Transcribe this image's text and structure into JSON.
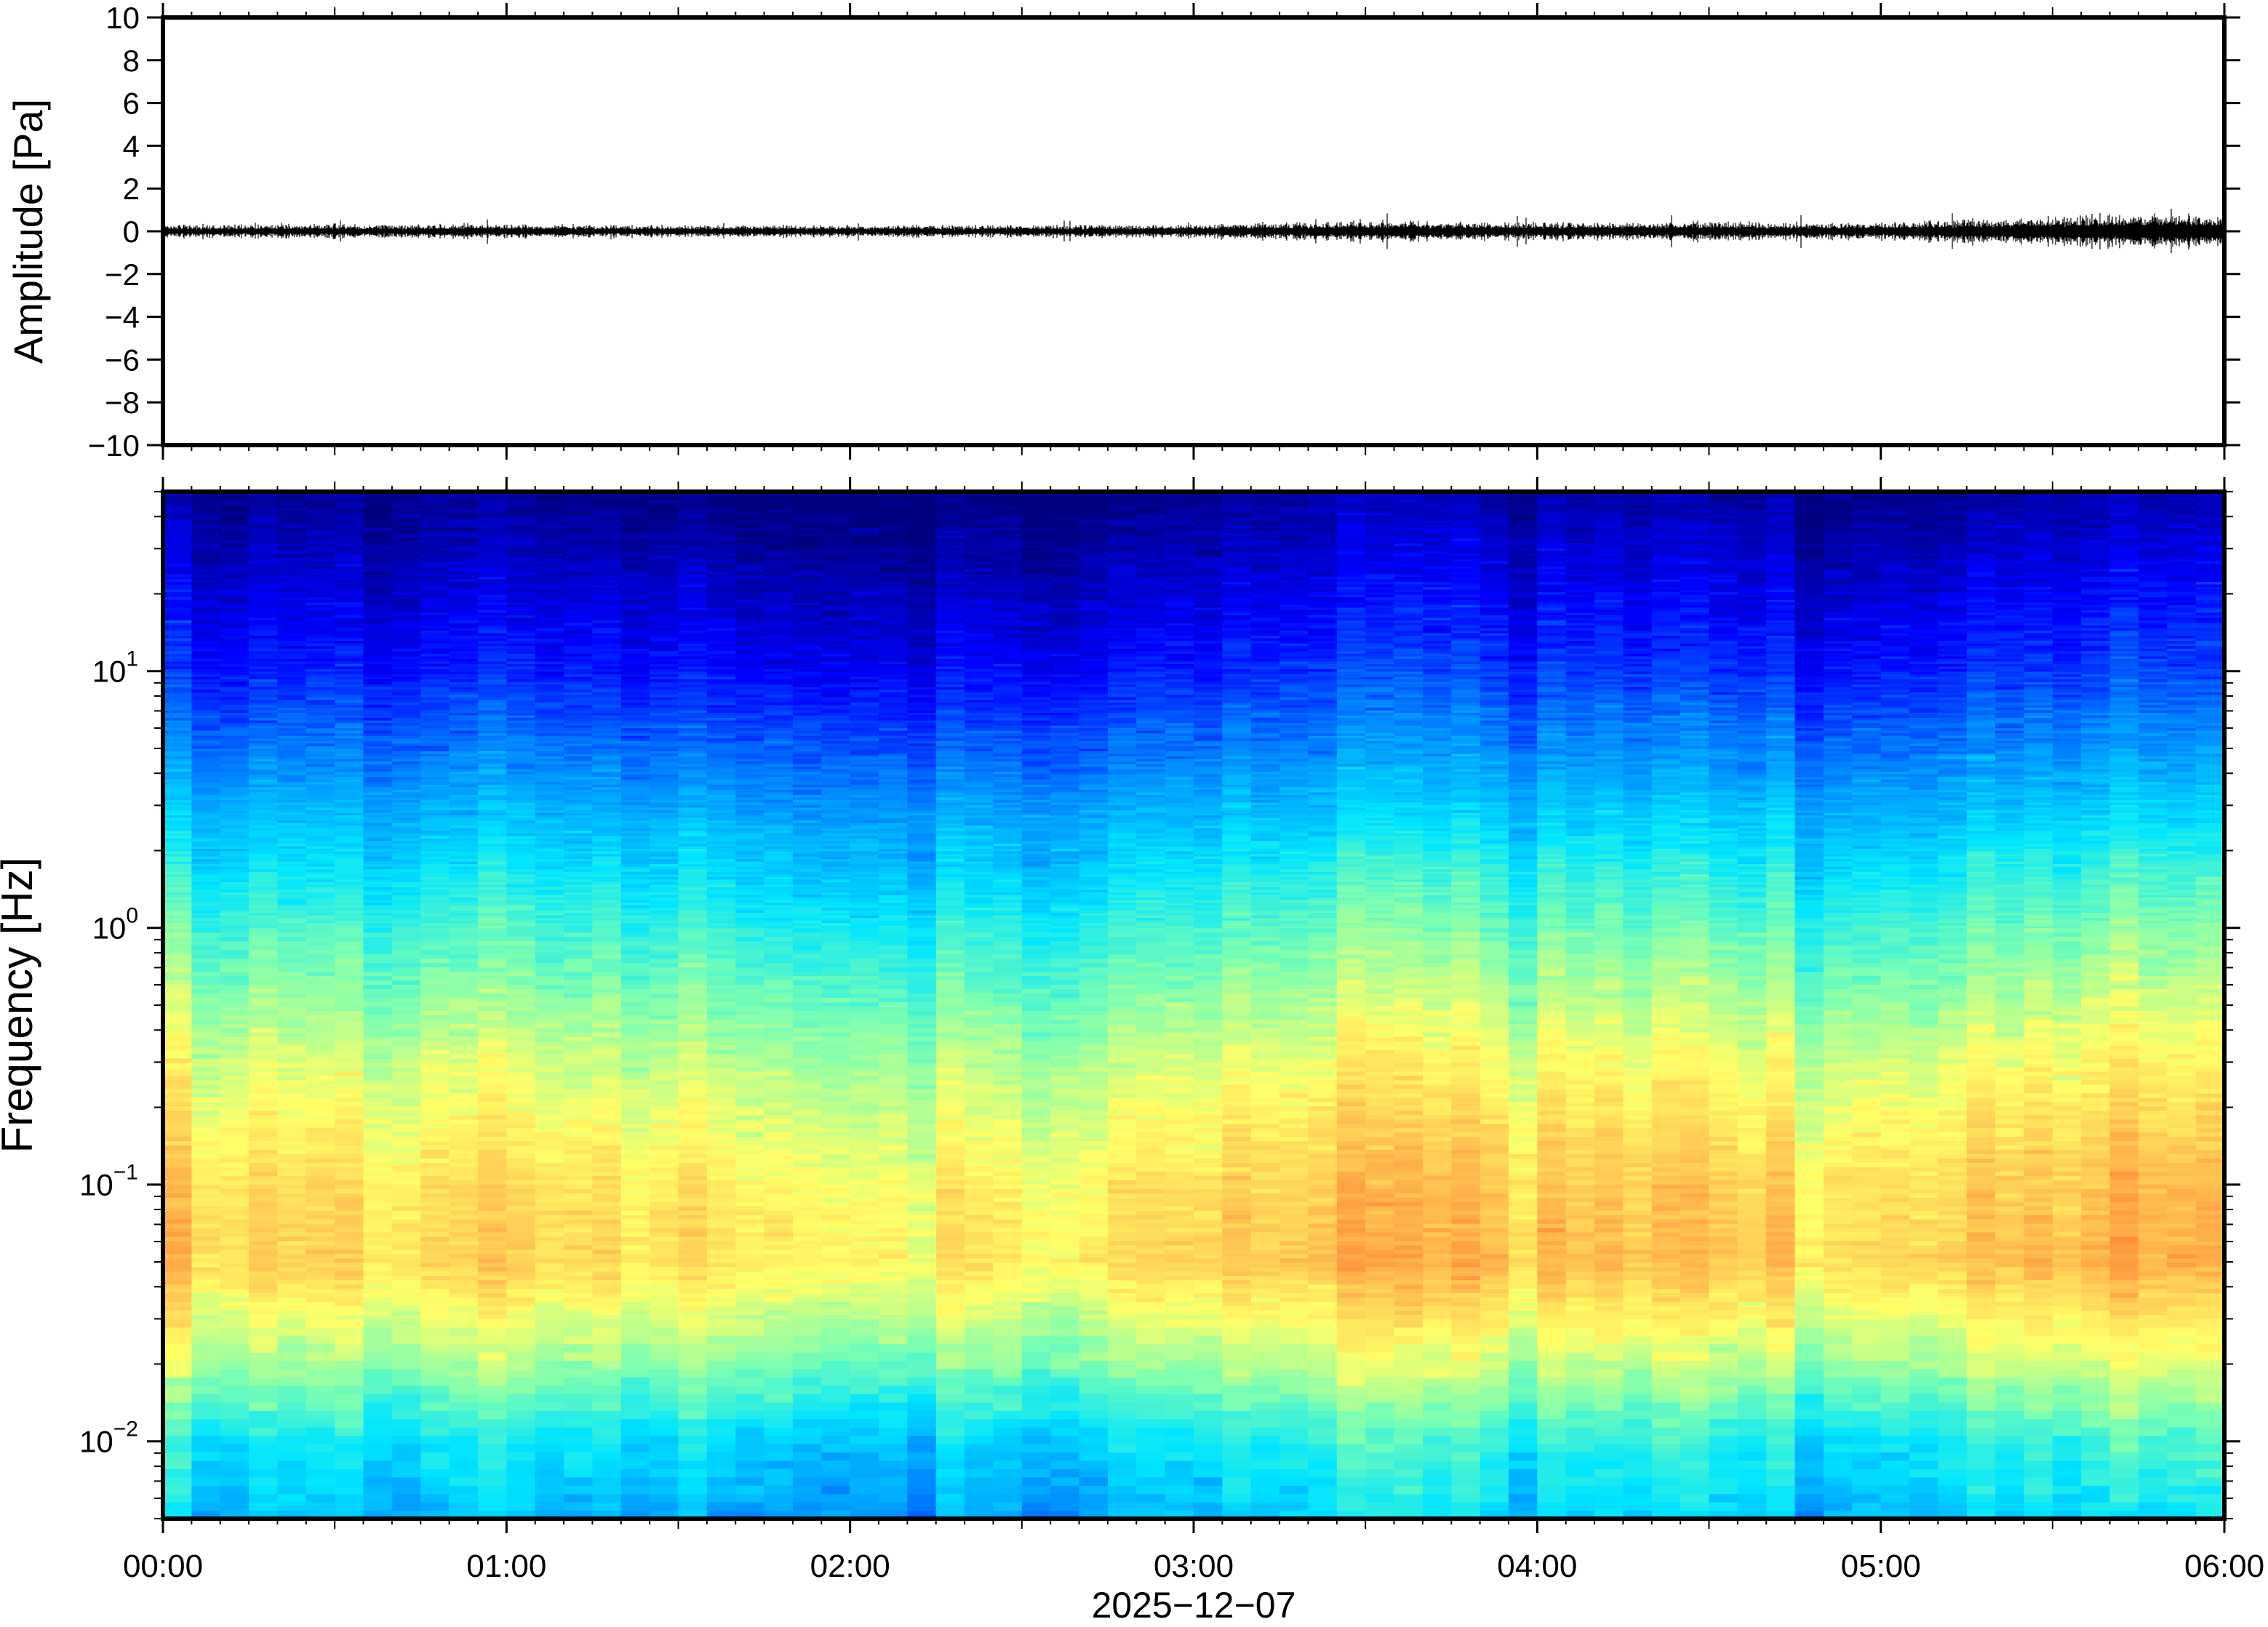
{
  "chart_data": [
    {
      "type": "line",
      "panel": "waveform",
      "ylabel": "Amplitude [Pa]",
      "ylim": [
        -10,
        10
      ],
      "ytick_values": [
        10,
        8,
        6,
        4,
        2,
        0,
        -2,
        -4,
        -6,
        -8,
        -10
      ],
      "yticks": [
        "10",
        "8",
        "6",
        "4",
        "2",
        "0",
        "−2",
        "−4",
        "−6",
        "−8",
        "−10"
      ],
      "xlim": [
        "00:00",
        "06:00"
      ],
      "trace_baseline": 0,
      "trace_typical_envelope": 0.4,
      "trace_peak_abs": 1.2,
      "envelope_by_hour": [
        {
          "x": "00:00",
          "amp": 0.3
        },
        {
          "x": "01:00",
          "amp": 0.3
        },
        {
          "x": "02:00",
          "amp": 0.25
        },
        {
          "x": "03:00",
          "amp": 0.3
        },
        {
          "x": "03:30",
          "amp": 0.45
        },
        {
          "x": "04:00",
          "amp": 0.4
        },
        {
          "x": "05:00",
          "amp": 0.4
        },
        {
          "x": "05:45",
          "amp": 0.8
        },
        {
          "x": "06:00",
          "amp": 0.7
        }
      ],
      "grid": false
    },
    {
      "type": "heatmap",
      "panel": "spectrogram",
      "ylabel": "Frequency [Hz]",
      "yscale": "log",
      "ylim": [
        0.005,
        50
      ],
      "ytick_labels": [
        {
          "value": 10,
          "base": "10",
          "exp": "1"
        },
        {
          "value": 1,
          "base": "10",
          "exp": "0"
        },
        {
          "value": 0.1,
          "base": "10",
          "exp": "−1"
        },
        {
          "value": 0.01,
          "base": "10",
          "exp": "−2"
        }
      ],
      "xlim": [
        "00:00",
        "06:00"
      ],
      "xticks": [
        "00:00",
        "01:00",
        "02:00",
        "03:00",
        "04:00",
        "05:00",
        "06:00"
      ],
      "xlabel": "2025−12−07",
      "colormap": "jet-like (blue = low power, red = high power)",
      "colormap_stops": [
        "#00007f",
        "#0000ff",
        "#0080ff",
        "#00e5ff",
        "#7fffb0",
        "#ffff66",
        "#ffb24c",
        "#ff5a1f"
      ],
      "relative_power_profile": [
        {
          "freq_hz": 50,
          "level": 0.02
        },
        {
          "freq_hz": 30,
          "level": 0.07
        },
        {
          "freq_hz": 10,
          "level": 0.18
        },
        {
          "freq_hz": 3,
          "level": 0.36
        },
        {
          "freq_hz": 1,
          "level": 0.52
        },
        {
          "freq_hz": 0.3,
          "level": 0.68
        },
        {
          "freq_hz": 0.1,
          "level": 0.78
        },
        {
          "freq_hz": 0.05,
          "level": 0.8
        },
        {
          "freq_hz": 0.02,
          "level": 0.62
        },
        {
          "freq_hz": 0.01,
          "level": 0.45
        },
        {
          "freq_hz": 0.005,
          "level": 0.38
        }
      ],
      "relative_power_by_time": [
        {
          "x": "00:00",
          "offset": 0.0
        },
        {
          "x": "01:00",
          "offset": -0.01
        },
        {
          "x": "02:00",
          "offset": -0.06
        },
        {
          "x": "02:30",
          "offset": -0.05
        },
        {
          "x": "03:00",
          "offset": 0.0
        },
        {
          "x": "03:30",
          "offset": 0.05
        },
        {
          "x": "04:00",
          "offset": 0.03
        },
        {
          "x": "04:30",
          "offset": 0.06
        },
        {
          "x": "04:45",
          "offset": -0.03
        },
        {
          "x": "05:00",
          "offset": 0.0
        },
        {
          "x": "05:30",
          "offset": 0.04
        },
        {
          "x": "05:50",
          "offset": 0.09
        },
        {
          "x": "06:00",
          "offset": 0.07
        }
      ]
    }
  ],
  "colors": {
    "frame": "#000000",
    "trace": "#000000",
    "background": "#ffffff"
  }
}
